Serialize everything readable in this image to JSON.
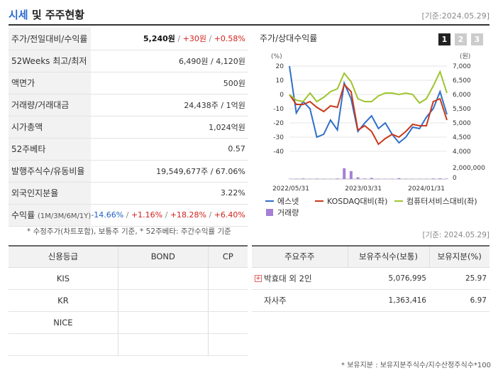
{
  "header": {
    "title_accent": "시세",
    "title_rest": " 및 주주현황",
    "date": "[기준:2024.05.29]"
  },
  "quote": {
    "price_row": {
      "label": "주가/전일대비/수익률",
      "price": "5,240원",
      "change": "+30원",
      "rate": "+0.58%"
    },
    "week52": {
      "label": "52Weeks 최고/최저",
      "value": "6,490원 / 4,120원"
    },
    "par": {
      "label": "액면가",
      "value": "500원"
    },
    "volume": {
      "label": "거래량/거래대금",
      "value": "24,438주 / 1억원"
    },
    "mcap": {
      "label": "시가총액",
      "value": "1,024억원"
    },
    "beta": {
      "label": "52주베타",
      "value": "0.57"
    },
    "shares": {
      "label": "발행주식수/유동비율",
      "value": "19,549,677주 / 67.06%"
    },
    "foreign": {
      "label": "외국인지분율",
      "value": "3.22%"
    },
    "returns": {
      "label": "수익률",
      "label_small": "(1M/3M/6M/1Y)",
      "r1": "-14.66%",
      "r2": "+1.16%",
      "r3": "+18.28%",
      "r4": "+6.40%"
    }
  },
  "notes": {
    "left": "* 수정주가(차트포함), 보통주 기준, * 52주베타: 주간수익률 기준",
    "right": "[기준: 2024.05.29]",
    "bottom": "* 보유지분 : 보유지분주식수/지수산정주식수*100"
  },
  "chart": {
    "title": "주가/상대수익률",
    "tabs": [
      "1",
      "2",
      "3"
    ],
    "colors": {
      "stock": "#2f6fc9",
      "kosdaq": "#c8391c",
      "sector": "#9ec42e",
      "volume": "#a67fd6"
    }
  },
  "chart_data": {
    "type": "line",
    "x_tick_labels": [
      "2022/05/31",
      "2023/03/31",
      "2024/01/31"
    ],
    "left_axis_unit": "(%)",
    "left_axis_ticks": [
      20,
      10,
      0,
      -10,
      -20,
      -30,
      -40
    ],
    "right_axis_unit": "(원)",
    "right_axis_ticks": [
      "7,000",
      "6,500",
      "6,000",
      "5,500",
      "5,000",
      "4,500",
      "4,000"
    ],
    "volume_axis_ticks": [
      "2,000,000",
      "0"
    ],
    "ylim_left": [
      -40,
      20
    ],
    "series": [
      {
        "name": "에스넷",
        "values": [
          20,
          -13,
          -5,
          -10,
          -30,
          -28,
          -18,
          -25,
          8,
          -3,
          -26,
          -20,
          -15,
          -24,
          -20,
          -28,
          -34,
          -30,
          -23,
          -24,
          -16,
          -10,
          2,
          -14
        ]
      },
      {
        "name": "KOSDAQ대비(좌)",
        "values": [
          0,
          -7,
          -7,
          -5,
          -9,
          -12,
          -8,
          -9,
          7,
          2,
          -25,
          -22,
          -26,
          -35,
          -31,
          -28,
          -30,
          -26,
          -21,
          -22,
          -22,
          -5,
          -3,
          -18
        ]
      },
      {
        "name": "컴퓨터서비스대비(좌)",
        "values": [
          0,
          -4,
          -5,
          1,
          -5,
          -2,
          2,
          4,
          15,
          9,
          -3,
          -5,
          -5,
          -1,
          1,
          1,
          0,
          1,
          0,
          -6,
          -3,
          6,
          16,
          1
        ]
      },
      {
        "name": "거래량",
        "values": [
          0.02,
          0.03,
          0.05,
          0.03,
          0.04,
          0.03,
          0.02,
          0.05,
          0.95,
          0.7,
          0.15,
          0.05,
          0.1,
          0.03,
          0.02,
          0.03,
          0.08,
          0.03,
          0.02,
          0.02,
          0.03,
          0.05,
          0.06,
          0.04
        ]
      }
    ]
  },
  "credit": {
    "headers": [
      "신용등급",
      "BOND",
      "CP"
    ],
    "rows": [
      [
        "KIS",
        "",
        ""
      ],
      [
        "KR",
        "",
        ""
      ],
      [
        "NICE",
        "",
        ""
      ],
      [
        "",
        "",
        ""
      ]
    ]
  },
  "holders": {
    "headers": [
      "주요주주",
      "보유주식수(보통)",
      "보유지분(%)"
    ],
    "rows": [
      {
        "name": "박효대 외 2인",
        "shares": "5,076,995",
        "pct": "25.97"
      },
      {
        "name": "자사주",
        "shares": "1,363,416",
        "pct": "6.97"
      }
    ]
  }
}
